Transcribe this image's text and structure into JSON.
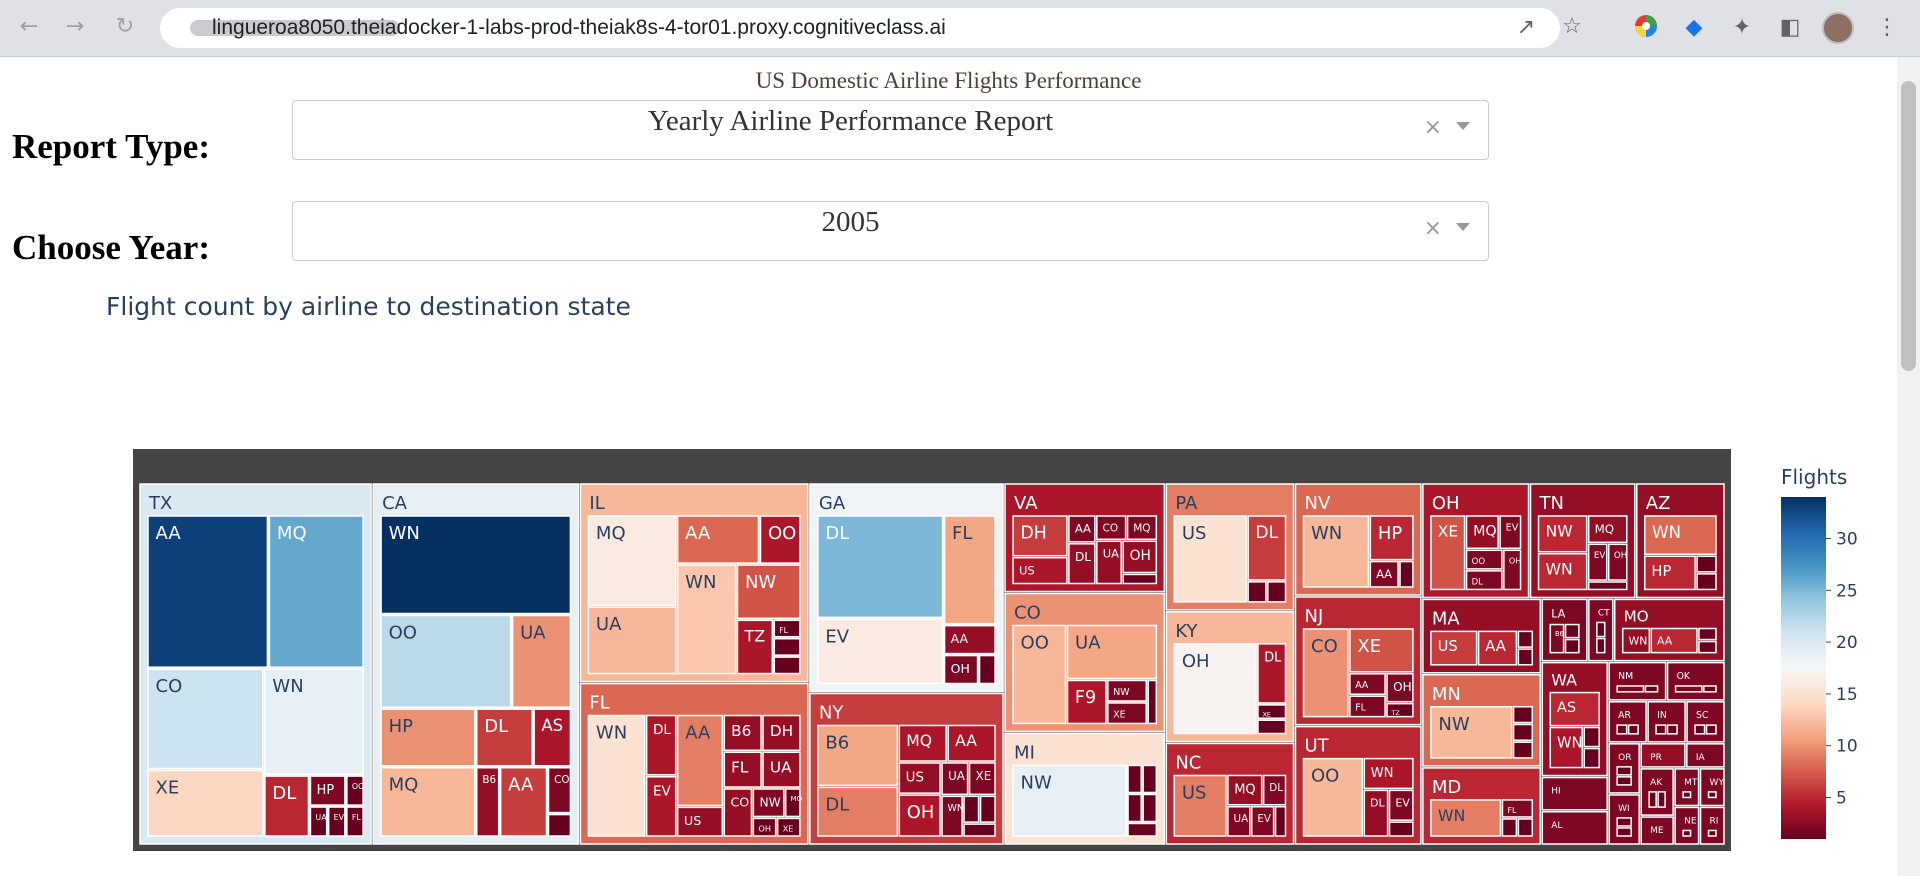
{
  "browser": {
    "url": "lingueroa8050.theiadocker-1-labs-prod-theiak8s-4-tor01.proxy.cognitiveclass.ai",
    "icons": [
      "back-icon",
      "forward-icon",
      "reload-icon",
      "share-icon",
      "star-icon",
      "color-wheel-icon",
      "extension-blue-icon",
      "puzzle-icon",
      "sidepanel-icon",
      "avatar",
      "menu-icon"
    ]
  },
  "app": {
    "title": "US Domestic Airline Flights Performance",
    "report_type_label": "Report Type:",
    "report_type_value": "Yearly Airline Performance Report",
    "year_label": "Choose Year:",
    "year_value": "2005",
    "clear_symbol": "×"
  },
  "chart_data": {
    "type": "treemap",
    "title": "Flight count by airline to destination state",
    "colorbar": {
      "title": "Flights",
      "ticks": [
        30,
        25,
        20,
        15,
        10,
        5
      ],
      "range": [
        1,
        34
      ],
      "colorscale": "RdBu"
    },
    "root_color": "#444444",
    "states": [
      {
        "state": "TX",
        "value": 20,
        "children": [
          {
            "label": "AA",
            "value": 33
          },
          {
            "label": "MQ",
            "value": 26
          },
          {
            "label": "CO",
            "value": 21
          },
          {
            "label": "XE",
            "value": 14
          },
          {
            "label": "WN",
            "value": 19
          },
          {
            "label": "DL",
            "value": 5
          },
          {
            "label": "HP",
            "value": 2
          },
          {
            "label": "OO",
            "value": 1
          },
          {
            "label": "UA",
            "value": 1
          },
          {
            "label": "EV",
            "value": 1
          },
          {
            "label": "FL",
            "value": 1
          }
        ]
      },
      {
        "state": "CA",
        "value": 19,
        "children": [
          {
            "label": "WN",
            "value": 34
          },
          {
            "label": "OO",
            "value": 22
          },
          {
            "label": "UA",
            "value": 10
          },
          {
            "label": "HP",
            "value": 10
          },
          {
            "label": "MQ",
            "value": 12
          },
          {
            "label": "DL",
            "value": 6
          },
          {
            "label": "AS",
            "value": 4
          },
          {
            "label": "B6",
            "value": 3
          },
          {
            "label": "AA",
            "value": 6
          },
          {
            "label": "CO",
            "value": 2
          },
          {
            "label": "",
            "value": 1
          }
        ]
      },
      {
        "state": "IL",
        "value": 12,
        "children": [
          {
            "label": "MQ",
            "value": 16
          },
          {
            "label": "UA",
            "value": 12
          },
          {
            "label": "AA",
            "value": 8
          },
          {
            "label": "OO",
            "value": 4
          },
          {
            "label": "WN",
            "value": 13
          },
          {
            "label": "NW",
            "value": 7
          },
          {
            "label": "TZ",
            "value": 4
          },
          {
            "label": "FL",
            "value": 1
          },
          {
            "label": "",
            "value": 1
          },
          {
            "label": "",
            "value": 1
          }
        ]
      },
      {
        "state": "FL",
        "value": 8,
        "children": [
          {
            "label": "WN",
            "value": 15
          },
          {
            "label": "DL",
            "value": 4
          },
          {
            "label": "EV",
            "value": 4
          },
          {
            "label": "AA",
            "value": 9
          },
          {
            "label": "US",
            "value": 3
          },
          {
            "label": "B6",
            "value": 3
          },
          {
            "label": "DH",
            "value": 3
          },
          {
            "label": "FL",
            "value": 3
          },
          {
            "label": "UA",
            "value": 3
          },
          {
            "label": "CO",
            "value": 3
          },
          {
            "label": "NW",
            "value": 2
          },
          {
            "label": "MQ",
            "value": 1
          },
          {
            "label": "OH",
            "value": 1
          },
          {
            "label": "XE",
            "value": 1
          }
        ]
      },
      {
        "state": "GA",
        "value": 18,
        "children": [
          {
            "label": "DL",
            "value": 25
          },
          {
            "label": "EV",
            "value": 16
          },
          {
            "label": "FL",
            "value": 11
          },
          {
            "label": "AA",
            "value": 3
          },
          {
            "label": "OH",
            "value": 2
          },
          {
            "label": "",
            "value": 1
          }
        ]
      },
      {
        "state": "NY",
        "value": 6,
        "children": [
          {
            "label": "B6",
            "value": 11
          },
          {
            "label": "DL",
            "value": 9
          },
          {
            "label": "MQ",
            "value": 4
          },
          {
            "label": "AA",
            "value": 4
          },
          {
            "label": "US",
            "value": 3
          },
          {
            "label": "OH",
            "value": 4
          },
          {
            "label": "UA",
            "value": 2
          },
          {
            "label": "XE",
            "value": 2
          },
          {
            "label": "WN",
            "value": 2
          },
          {
            "label": "",
            "value": 1
          },
          {
            "label": "",
            "value": 1
          },
          {
            "label": "",
            "value": 1
          }
        ]
      },
      {
        "state": "VA",
        "value": 4,
        "children": [
          {
            "label": "DH",
            "value": 6
          },
          {
            "label": "US",
            "value": 4
          },
          {
            "label": "AA",
            "value": 2
          },
          {
            "label": "DL",
            "value": 3
          },
          {
            "label": "CO",
            "value": 2
          },
          {
            "label": "MQ",
            "value": 2
          },
          {
            "label": "UA",
            "value": 3
          },
          {
            "label": "OH",
            "value": 3
          },
          {
            "label": "",
            "value": 1
          }
        ]
      },
      {
        "state": "CO",
        "value": 10,
        "children": [
          {
            "label": "OO",
            "value": 12
          },
          {
            "label": "UA",
            "value": 11
          },
          {
            "label": "F9",
            "value": 4
          },
          {
            "label": "NW",
            "value": 2
          },
          {
            "label": "XE",
            "value": 2
          },
          {
            "label": "",
            "value": 1
          }
        ]
      },
      {
        "state": "MI",
        "value": 15,
        "children": [
          {
            "label": "NW",
            "value": 19
          },
          {
            "label": "",
            "value": 1
          },
          {
            "label": "",
            "value": 1
          },
          {
            "label": "",
            "value": 1
          },
          {
            "label": "",
            "value": 1
          },
          {
            "label": "",
            "value": 1
          }
        ]
      },
      {
        "state": "PA",
        "value": 9,
        "children": [
          {
            "label": "US",
            "value": 15
          },
          {
            "label": "DL",
            "value": 6
          },
          {
            "label": "",
            "value": 1
          },
          {
            "label": "",
            "value": 1
          }
        ]
      },
      {
        "state": "KY",
        "value": 12,
        "children": [
          {
            "label": "OH",
            "value": 17
          },
          {
            "label": "DL",
            "value": 4
          },
          {
            "label": "XE",
            "value": 1
          },
          {
            "label": "",
            "value": 1
          }
        ]
      },
      {
        "state": "NC",
        "value": 5,
        "children": [
          {
            "label": "US",
            "value": 9
          },
          {
            "label": "MQ",
            "value": 3
          },
          {
            "label": "DL",
            "value": 2
          },
          {
            "label": "UA",
            "value": 2
          },
          {
            "label": "EV",
            "value": 2
          },
          {
            "label": "",
            "value": 1
          }
        ]
      },
      {
        "state": "NV",
        "value": 8,
        "children": [
          {
            "label": "WN",
            "value": 12
          },
          {
            "label": "HP",
            "value": 5
          },
          {
            "label": "AA",
            "value": 2
          },
          {
            "label": "",
            "value": 1
          }
        ]
      },
      {
        "state": "NJ",
        "value": 5,
        "children": [
          {
            "label": "CO",
            "value": 10
          },
          {
            "label": "XE",
            "value": 7
          },
          {
            "label": "AA",
            "value": 2
          },
          {
            "label": "FL",
            "value": 2
          },
          {
            "label": "OH",
            "value": 2
          },
          {
            "label": "TZ",
            "value": 1
          }
        ]
      },
      {
        "state": "UT",
        "value": 5,
        "children": [
          {
            "label": "OO",
            "value": 12
          },
          {
            "label": "WN",
            "value": 4
          },
          {
            "label": "DL",
            "value": 3
          },
          {
            "label": "EV",
            "value": 2
          },
          {
            "label": "",
            "value": 1
          }
        ]
      },
      {
        "state": "OH",
        "value": 4,
        "children": [
          {
            "label": "XE",
            "value": 7
          },
          {
            "label": "MQ",
            "value": 3
          },
          {
            "label": "EV",
            "value": 2
          },
          {
            "label": "OO",
            "value": 2
          },
          {
            "label": "DL",
            "value": 2
          },
          {
            "label": "OH",
            "value": 2
          }
        ]
      },
      {
        "state": "TN",
        "value": 3,
        "children": [
          {
            "label": "NW",
            "value": 5
          },
          {
            "label": "WN",
            "value": 5
          },
          {
            "label": "MQ",
            "value": 3
          },
          {
            "label": "EV",
            "value": 2
          },
          {
            "label": "OH",
            "value": 2
          },
          {
            "label": "AA",
            "value": 1
          }
        ]
      },
      {
        "state": "AZ",
        "value": 3,
        "children": [
          {
            "label": "WN",
            "value": 8
          },
          {
            "label": "HP",
            "value": 5
          },
          {
            "label": "",
            "value": 1
          },
          {
            "label": "",
            "value": 1
          }
        ]
      },
      {
        "state": "MA",
        "value": 3,
        "children": [
          {
            "label": "US",
            "value": 6
          },
          {
            "label": "AA",
            "value": 5
          },
          {
            "label": "",
            "value": 1
          },
          {
            "label": "",
            "value": 1
          }
        ]
      },
      {
        "state": "MN",
        "value": 8,
        "children": [
          {
            "label": "NW",
            "value": 12
          },
          {
            "label": "",
            "value": 1
          },
          {
            "label": "",
            "value": 1
          },
          {
            "label": "",
            "value": 1
          }
        ]
      },
      {
        "state": "MD",
        "value": 5,
        "children": [
          {
            "label": "WN",
            "value": 9
          },
          {
            "label": "FL",
            "value": 2
          },
          {
            "label": "",
            "value": 1
          },
          {
            "label": "",
            "value": 1
          }
        ]
      },
      {
        "state": "LA",
        "value": 2,
        "children": [
          {
            "label": "B6",
            "value": 2
          },
          {
            "label": "",
            "value": 1
          },
          {
            "label": "",
            "value": 1
          }
        ]
      },
      {
        "state": "CT",
        "value": 2,
        "children": [
          {
            "label": "",
            "value": 1
          },
          {
            "label": "",
            "value": 1
          }
        ]
      },
      {
        "state": "MO",
        "value": 3,
        "children": [
          {
            "label": "WN",
            "value": 3
          },
          {
            "label": "AA",
            "value": 5
          },
          {
            "label": "",
            "value": 1
          },
          {
            "label": "",
            "value": 1
          }
        ]
      },
      {
        "state": "WA",
        "value": 3,
        "children": [
          {
            "label": "AS",
            "value": 5
          },
          {
            "label": "WN",
            "value": 4
          },
          {
            "label": "",
            "value": 1
          },
          {
            "label": "",
            "value": 1
          }
        ]
      },
      {
        "state": "HI",
        "value": 2,
        "children": [
          {
            "label": "HA",
            "value": 2
          },
          {
            "label": "",
            "value": 1
          }
        ]
      },
      {
        "state": "AL",
        "value": 2,
        "children": [
          {
            "label": "WN",
            "value": 2
          },
          {
            "label": "",
            "value": 1
          }
        ]
      },
      {
        "state": "NM",
        "value": 2,
        "children": [
          {
            "label": "WN",
            "value": 2
          },
          {
            "label": "",
            "value": 1
          }
        ]
      },
      {
        "state": "OK",
        "value": 2,
        "children": [
          {
            "label": "WN",
            "value": 2
          },
          {
            "label": "",
            "value": 1
          }
        ]
      },
      {
        "state": "AR",
        "value": 2,
        "children": [
          {
            "label": "",
            "value": 1
          },
          {
            "label": "",
            "value": 1
          }
        ]
      },
      {
        "state": "IN",
        "value": 2,
        "children": [
          {
            "label": "",
            "value": 1
          },
          {
            "label": "",
            "value": 1
          }
        ]
      },
      {
        "state": "SC",
        "value": 2,
        "children": [
          {
            "label": "",
            "value": 1
          },
          {
            "label": "",
            "value": 1
          }
        ]
      },
      {
        "state": "OR",
        "value": 2,
        "children": [
          {
            "label": "",
            "value": 1
          },
          {
            "label": "",
            "value": 1
          }
        ]
      },
      {
        "state": "WI",
        "value": 2,
        "children": [
          {
            "label": "",
            "value": 1
          },
          {
            "label": "",
            "value": 1
          }
        ]
      },
      {
        "state": "PR",
        "value": 3,
        "children": [
          {
            "label": "",
            "value": 1
          }
        ]
      },
      {
        "state": "IA",
        "value": 2,
        "children": [
          {
            "label": "",
            "value": 1
          }
        ]
      },
      {
        "state": "AK",
        "value": 2,
        "children": [
          {
            "label": "",
            "value": 1
          },
          {
            "label": "",
            "value": 1
          }
        ]
      },
      {
        "state": "ME",
        "value": 2,
        "children": [
          {
            "label": "",
            "value": 1
          }
        ]
      },
      {
        "state": "MT",
        "value": 2,
        "children": [
          {
            "label": "",
            "value": 1
          }
        ]
      },
      {
        "state": "WY",
        "value": 2,
        "children": [
          {
            "label": "",
            "value": 1
          }
        ]
      },
      {
        "state": "NE",
        "value": 2,
        "children": [
          {
            "label": "",
            "value": 1
          }
        ]
      },
      {
        "state": "RI",
        "value": 2,
        "children": [
          {
            "label": "",
            "value": 1
          }
        ]
      }
    ]
  }
}
